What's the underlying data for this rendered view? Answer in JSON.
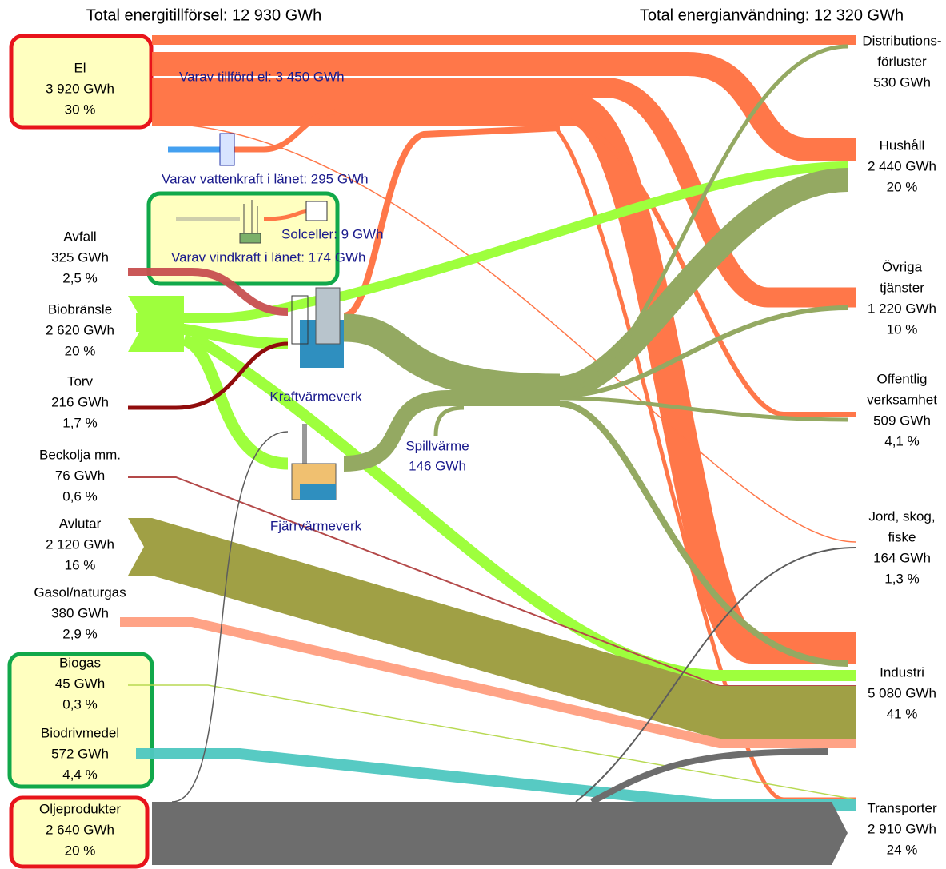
{
  "header": {
    "supply_total": "Total energitillförsel: 12 930 GWh",
    "use_total": "Total energianvändning: 12 320 GWh"
  },
  "sources": [
    {
      "lines": [
        "El",
        "3 920 GWh",
        "30 %"
      ]
    },
    {
      "lines": [
        "Avfall",
        "325 GWh",
        "2,5 %"
      ]
    },
    {
      "lines": [
        "Biobränsle",
        "2 620 GWh",
        "20 %"
      ]
    },
    {
      "lines": [
        "Torv",
        "216 GWh",
        "1,7 %"
      ]
    },
    {
      "lines": [
        "Beckolja mm.",
        "76 GWh",
        "0,6 %"
      ]
    },
    {
      "lines": [
        "Avlutar",
        "2 120 GWh",
        "16 %"
      ]
    },
    {
      "lines": [
        "Gasol/naturgas",
        "380 GWh",
        "2,9 %"
      ]
    },
    {
      "lines": [
        "Biogas",
        "45 GWh",
        "0,3 %"
      ]
    },
    {
      "lines": [
        "Biodrivmedel",
        "572 GWh",
        "4,4 %"
      ]
    },
    {
      "lines": [
        "Oljeprodukter",
        "2 640 GWh",
        "20 %"
      ]
    }
  ],
  "uses": [
    {
      "lines": [
        "Distributions-",
        "förluster",
        "530 GWh"
      ]
    },
    {
      "lines": [
        "Hushåll",
        "2 440 GWh",
        "20 %"
      ]
    },
    {
      "lines": [
        "Övriga",
        "tjänster",
        "1 220 GWh",
        "10 %"
      ]
    },
    {
      "lines": [
        "Offentlig",
        "verksamhet",
        "509 GWh",
        "4,1 %"
      ]
    },
    {
      "lines": [
        "Jord, skog,",
        "fiske",
        "164 GWh",
        "1,3 %"
      ]
    },
    {
      "lines": [
        "Industri",
        "5 080 GWh",
        "41 %"
      ]
    },
    {
      "lines": [
        "Transporter",
        "2 910 GWh",
        "24 %"
      ]
    }
  ],
  "annotations": {
    "imported_el": "Varav tillförd el: 3 450 GWh",
    "hydro": "Varav vattenkraft i länet: 295 GWh",
    "solar": "Solceller: 9 GWh",
    "wind": "Varav vindkraft i länet: 174 GWh",
    "chp": "Kraftvärmeverk",
    "district_heating": "Fjärrvärmeverk",
    "waste_heat": "Spillvärme",
    "waste_heat_value": "146 GWh"
  }
}
